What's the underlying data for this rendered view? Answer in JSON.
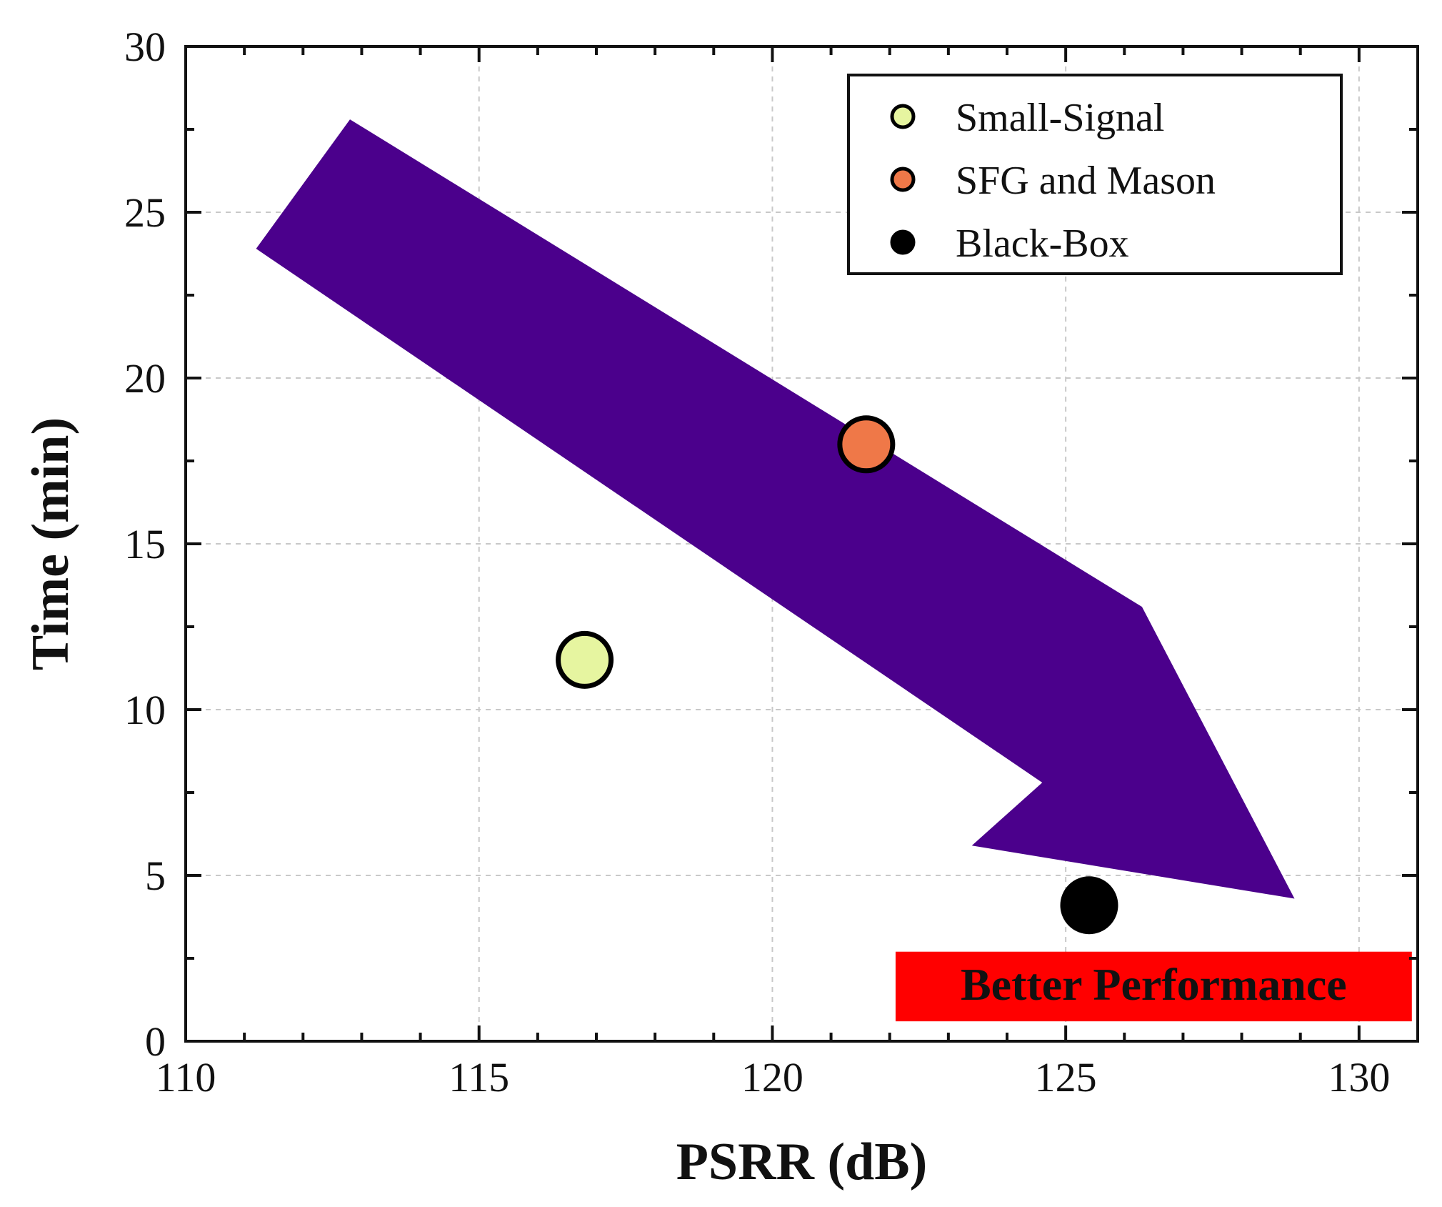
{
  "chart_data": {
    "type": "scatter",
    "title": "",
    "xlabel": "PSRR (dB)",
    "ylabel": "Time (min)",
    "xlim": [
      110,
      131
    ],
    "ylim": [
      0,
      30
    ],
    "xticks": [
      110,
      115,
      120,
      125,
      130
    ],
    "yticks": [
      0,
      5,
      10,
      15,
      20,
      25,
      30
    ],
    "grid": true,
    "legend_position": "top-right",
    "series": [
      {
        "name": "Small-Signal",
        "color": "#e6f5a0",
        "points": [
          {
            "x": 116.8,
            "y": 11.5
          }
        ]
      },
      {
        "name": " SFG and Mason",
        "color": "#ef7848",
        "points": [
          {
            "x": 121.6,
            "y": 18.0
          }
        ]
      },
      {
        "name": "Black-Box",
        "color": "#000000",
        "points": [
          {
            "x": 125.4,
            "y": 4.1
          }
        ]
      }
    ],
    "annotations": {
      "arrow": {
        "color": "#4b008c",
        "direction": "toward bottom-right",
        "polygon": [
          {
            "x": 111.2,
            "y": 23.9
          },
          {
            "x": 112.8,
            "y": 27.8
          },
          {
            "x": 126.3,
            "y": 13.1
          },
          {
            "x": 128.9,
            "y": 4.3
          },
          {
            "x": 123.4,
            "y": 5.9
          },
          {
            "x": 124.6,
            "y": 7.8
          }
        ]
      },
      "banner": {
        "text": "Better Performance",
        "background": "#ff0000",
        "x_range": [
          122.1,
          130.9
        ],
        "y_range": [
          0.6,
          2.7
        ]
      }
    }
  }
}
